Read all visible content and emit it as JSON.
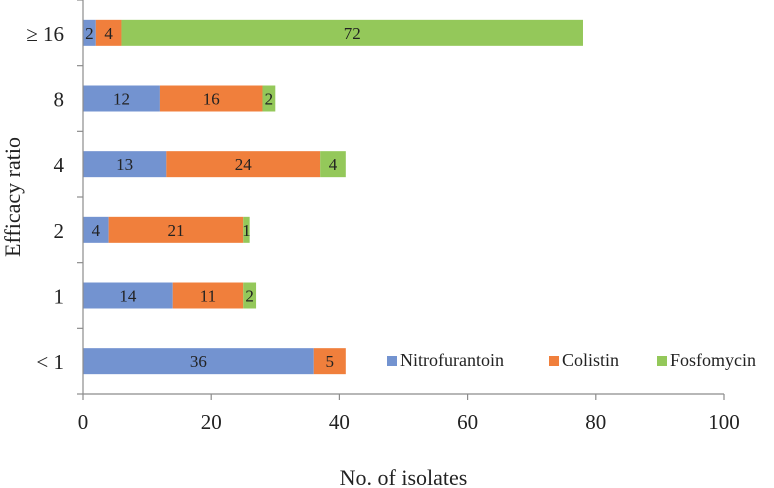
{
  "chart_data": {
    "type": "bar",
    "orientation": "horizontal",
    "stacked": true,
    "title": "",
    "xlabel": "No. of isolates",
    "ylabel": "Efficacy ratio",
    "xlim": [
      0,
      100
    ],
    "x_ticks": [
      0,
      20,
      40,
      60,
      80,
      100
    ],
    "grid": false,
    "legend_position": "bottom-right",
    "categories": [
      "< 1",
      "1",
      "2",
      "4",
      "8",
      "≥ 16"
    ],
    "series": [
      {
        "name": "Nitrofurantoin",
        "color": "#7393d0",
        "values": [
          36,
          14,
          4,
          13,
          12,
          2
        ]
      },
      {
        "name": "Colistin",
        "color": "#f07f3c",
        "values": [
          5,
          11,
          21,
          24,
          16,
          4
        ]
      },
      {
        "name": "Fosfomycin",
        "color": "#94c85a",
        "values": [
          0,
          2,
          1,
          4,
          2,
          72
        ]
      }
    ]
  }
}
